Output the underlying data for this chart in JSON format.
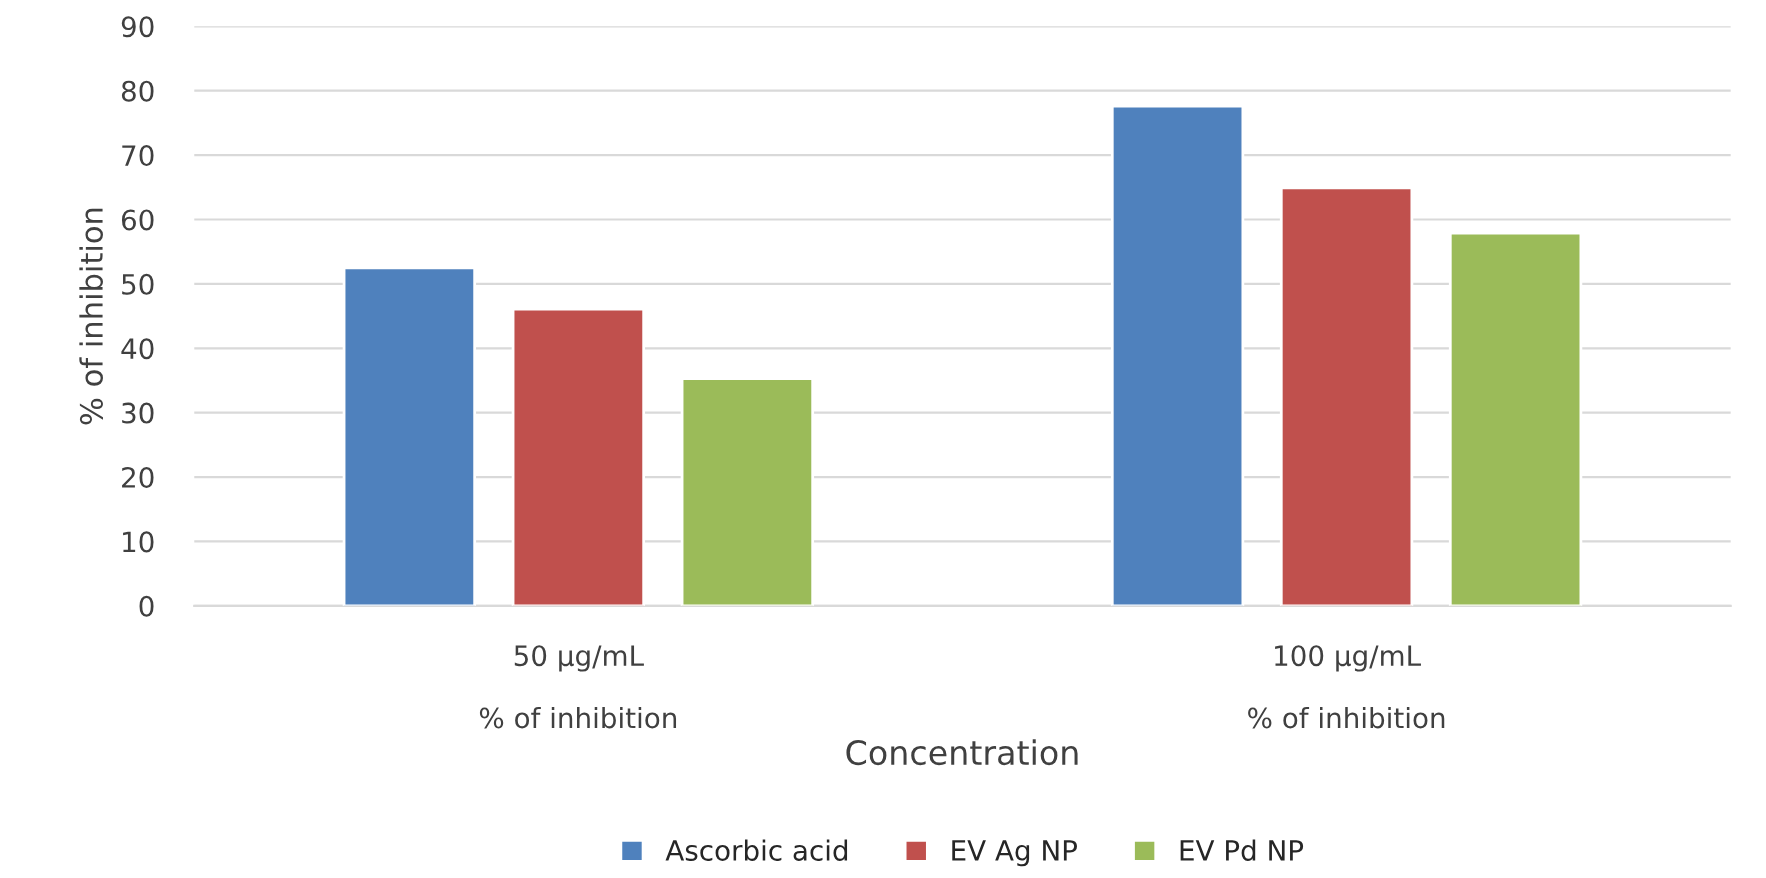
{
  "chart_data": {
    "type": "bar",
    "xlabel": "Concentration",
    "ylabel": "% of inhibition",
    "categories": [
      "50 μg/mL\n\n% of inhibition",
      "100 μg/mL\n\n% of inhibition"
    ],
    "series": [
      {
        "name": "Ascorbic acid",
        "color": "#4f81bd",
        "values": [
          52.5,
          77.6
        ]
      },
      {
        "name": "EV Ag NP",
        "color": "#c0504d",
        "values": [
          46.1,
          64.9
        ]
      },
      {
        "name": "EV Pd NP",
        "color": "#9bbb59",
        "values": [
          35.3,
          57.9
        ]
      }
    ],
    "ylim": [
      0,
      90
    ],
    "yticks": [
      0,
      10,
      20,
      30,
      40,
      50,
      60,
      70,
      80,
      90
    ],
    "grid": "y",
    "legend": "bottom"
  }
}
